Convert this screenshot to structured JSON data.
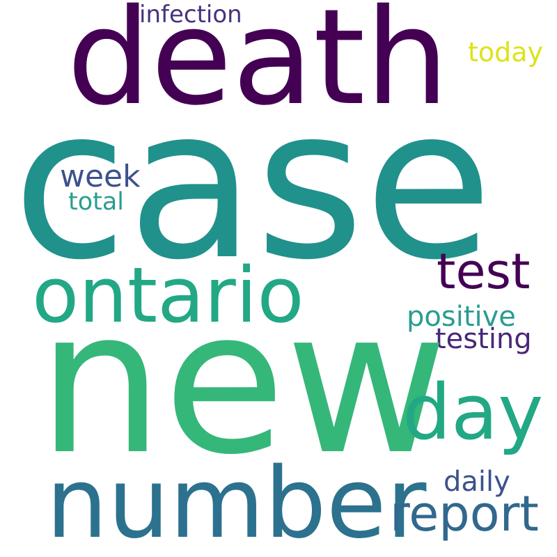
{
  "words": [
    {
      "id": "death",
      "text": "death",
      "color": "#440154"
    },
    {
      "id": "infection",
      "text": "infection",
      "color": "#46327e"
    },
    {
      "id": "today",
      "text": "today",
      "color": "#dde318"
    },
    {
      "id": "case",
      "text": "case",
      "color": "#21918c"
    },
    {
      "id": "week",
      "text": "week",
      "color": "#3b528b"
    },
    {
      "id": "total",
      "text": "total",
      "color": "#2a9d8f"
    },
    {
      "id": "ontario",
      "text": "ontario",
      "color": "#22a884"
    },
    {
      "id": "test",
      "text": "test",
      "color": "#440154"
    },
    {
      "id": "positive",
      "text": "positive",
      "color": "#2a9d8f"
    },
    {
      "id": "testing",
      "text": "testing",
      "color": "#482878"
    },
    {
      "id": "new",
      "text": "new",
      "color": "#35b779"
    },
    {
      "id": "day",
      "text": "day",
      "color": "#22a884"
    },
    {
      "id": "daily",
      "text": "daily",
      "color": "#3b528b"
    },
    {
      "id": "number",
      "text": "number",
      "color": "#2c728e"
    },
    {
      "id": "report",
      "text": "report",
      "color": "#31688e"
    }
  ]
}
